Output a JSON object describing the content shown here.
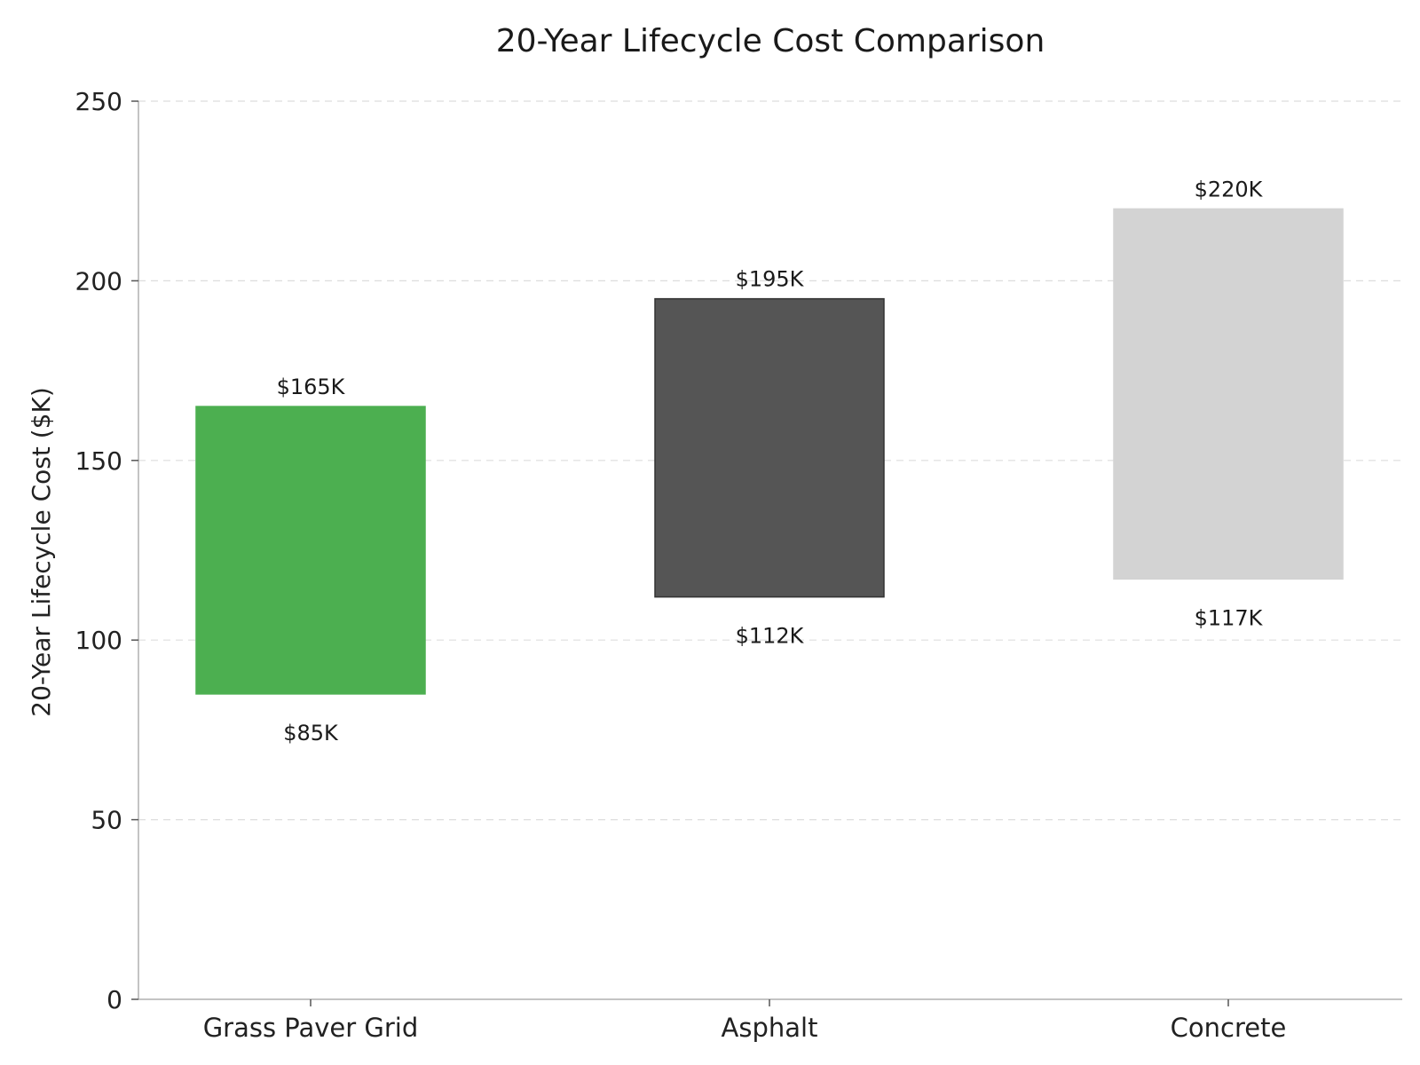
{
  "chart_data": {
    "type": "bar",
    "subtype": "floating-range",
    "title": "20-Year Lifecycle Cost Comparison",
    "xlabel": "",
    "ylabel": "20-Year Lifecycle Cost ($K)",
    "ylim": [
      0,
      250
    ],
    "yticks": [
      0,
      50,
      100,
      150,
      200,
      250
    ],
    "ytick_labels": [
      "0",
      "50",
      "100",
      "150",
      "200",
      "250"
    ],
    "grid": "horizontal dashed",
    "categories": [
      "Grass Paver Grid",
      "Asphalt",
      "Concrete"
    ],
    "low": [
      85,
      112,
      117
    ],
    "high": [
      165,
      195,
      220
    ],
    "low_labels": [
      "$85K",
      "$112K",
      "$117K"
    ],
    "high_labels": [
      "$165K",
      "$195K",
      "$220K"
    ],
    "colors": [
      "#4caf50",
      "#555555",
      "#d3d3d3"
    ],
    "edge_colors": [
      "#4caf50",
      "#333333",
      "#d3d3d3"
    ]
  }
}
